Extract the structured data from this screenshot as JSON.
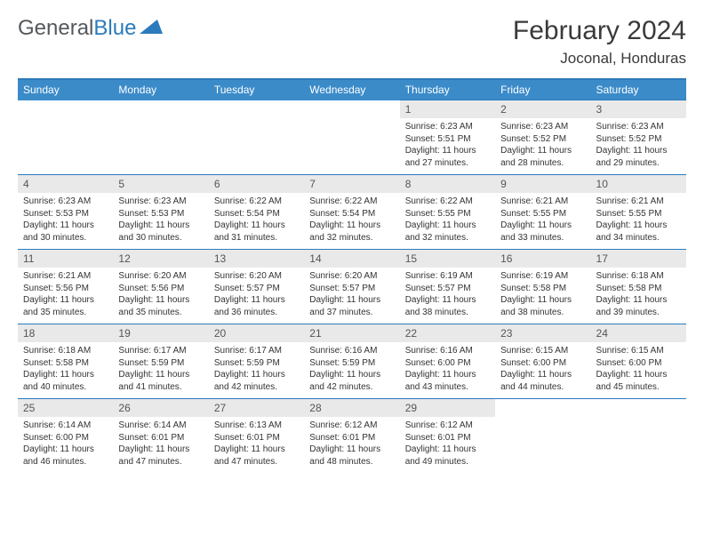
{
  "brand": {
    "text1": "General",
    "text2": "Blue"
  },
  "title": "February 2024",
  "location": "Joconal, Honduras",
  "weekdays": [
    "Sunday",
    "Monday",
    "Tuesday",
    "Wednesday",
    "Thursday",
    "Friday",
    "Saturday"
  ],
  "colors": {
    "header_bg": "#3b8bc9",
    "header_text": "#ffffff",
    "daynum_bg": "#e9e9e9",
    "border": "#2b7bbc",
    "body_text": "#333333",
    "title_text": "#3a3a3a",
    "logo_gray": "#55595c",
    "logo_blue": "#2b7bbc"
  },
  "layout": {
    "cols": 7,
    "rows": 5,
    "first_day_col": 4
  },
  "days": [
    {
      "n": "1",
      "sunrise": "6:23 AM",
      "sunset": "5:51 PM",
      "dl": "11 hours and 27 minutes."
    },
    {
      "n": "2",
      "sunrise": "6:23 AM",
      "sunset": "5:52 PM",
      "dl": "11 hours and 28 minutes."
    },
    {
      "n": "3",
      "sunrise": "6:23 AM",
      "sunset": "5:52 PM",
      "dl": "11 hours and 29 minutes."
    },
    {
      "n": "4",
      "sunrise": "6:23 AM",
      "sunset": "5:53 PM",
      "dl": "11 hours and 30 minutes."
    },
    {
      "n": "5",
      "sunrise": "6:23 AM",
      "sunset": "5:53 PM",
      "dl": "11 hours and 30 minutes."
    },
    {
      "n": "6",
      "sunrise": "6:22 AM",
      "sunset": "5:54 PM",
      "dl": "11 hours and 31 minutes."
    },
    {
      "n": "7",
      "sunrise": "6:22 AM",
      "sunset": "5:54 PM",
      "dl": "11 hours and 32 minutes."
    },
    {
      "n": "8",
      "sunrise": "6:22 AM",
      "sunset": "5:55 PM",
      "dl": "11 hours and 32 minutes."
    },
    {
      "n": "9",
      "sunrise": "6:21 AM",
      "sunset": "5:55 PM",
      "dl": "11 hours and 33 minutes."
    },
    {
      "n": "10",
      "sunrise": "6:21 AM",
      "sunset": "5:55 PM",
      "dl": "11 hours and 34 minutes."
    },
    {
      "n": "11",
      "sunrise": "6:21 AM",
      "sunset": "5:56 PM",
      "dl": "11 hours and 35 minutes."
    },
    {
      "n": "12",
      "sunrise": "6:20 AM",
      "sunset": "5:56 PM",
      "dl": "11 hours and 35 minutes."
    },
    {
      "n": "13",
      "sunrise": "6:20 AM",
      "sunset": "5:57 PM",
      "dl": "11 hours and 36 minutes."
    },
    {
      "n": "14",
      "sunrise": "6:20 AM",
      "sunset": "5:57 PM",
      "dl": "11 hours and 37 minutes."
    },
    {
      "n": "15",
      "sunrise": "6:19 AM",
      "sunset": "5:57 PM",
      "dl": "11 hours and 38 minutes."
    },
    {
      "n": "16",
      "sunrise": "6:19 AM",
      "sunset": "5:58 PM",
      "dl": "11 hours and 38 minutes."
    },
    {
      "n": "17",
      "sunrise": "6:18 AM",
      "sunset": "5:58 PM",
      "dl": "11 hours and 39 minutes."
    },
    {
      "n": "18",
      "sunrise": "6:18 AM",
      "sunset": "5:58 PM",
      "dl": "11 hours and 40 minutes."
    },
    {
      "n": "19",
      "sunrise": "6:17 AM",
      "sunset": "5:59 PM",
      "dl": "11 hours and 41 minutes."
    },
    {
      "n": "20",
      "sunrise": "6:17 AM",
      "sunset": "5:59 PM",
      "dl": "11 hours and 42 minutes."
    },
    {
      "n": "21",
      "sunrise": "6:16 AM",
      "sunset": "5:59 PM",
      "dl": "11 hours and 42 minutes."
    },
    {
      "n": "22",
      "sunrise": "6:16 AM",
      "sunset": "6:00 PM",
      "dl": "11 hours and 43 minutes."
    },
    {
      "n": "23",
      "sunrise": "6:15 AM",
      "sunset": "6:00 PM",
      "dl": "11 hours and 44 minutes."
    },
    {
      "n": "24",
      "sunrise": "6:15 AM",
      "sunset": "6:00 PM",
      "dl": "11 hours and 45 minutes."
    },
    {
      "n": "25",
      "sunrise": "6:14 AM",
      "sunset": "6:00 PM",
      "dl": "11 hours and 46 minutes."
    },
    {
      "n": "26",
      "sunrise": "6:14 AM",
      "sunset": "6:01 PM",
      "dl": "11 hours and 47 minutes."
    },
    {
      "n": "27",
      "sunrise": "6:13 AM",
      "sunset": "6:01 PM",
      "dl": "11 hours and 47 minutes."
    },
    {
      "n": "28",
      "sunrise": "6:12 AM",
      "sunset": "6:01 PM",
      "dl": "11 hours and 48 minutes."
    },
    {
      "n": "29",
      "sunrise": "6:12 AM",
      "sunset": "6:01 PM",
      "dl": "11 hours and 49 minutes."
    }
  ],
  "labels": {
    "sunrise": "Sunrise:",
    "sunset": "Sunset:",
    "daylight": "Daylight:"
  }
}
